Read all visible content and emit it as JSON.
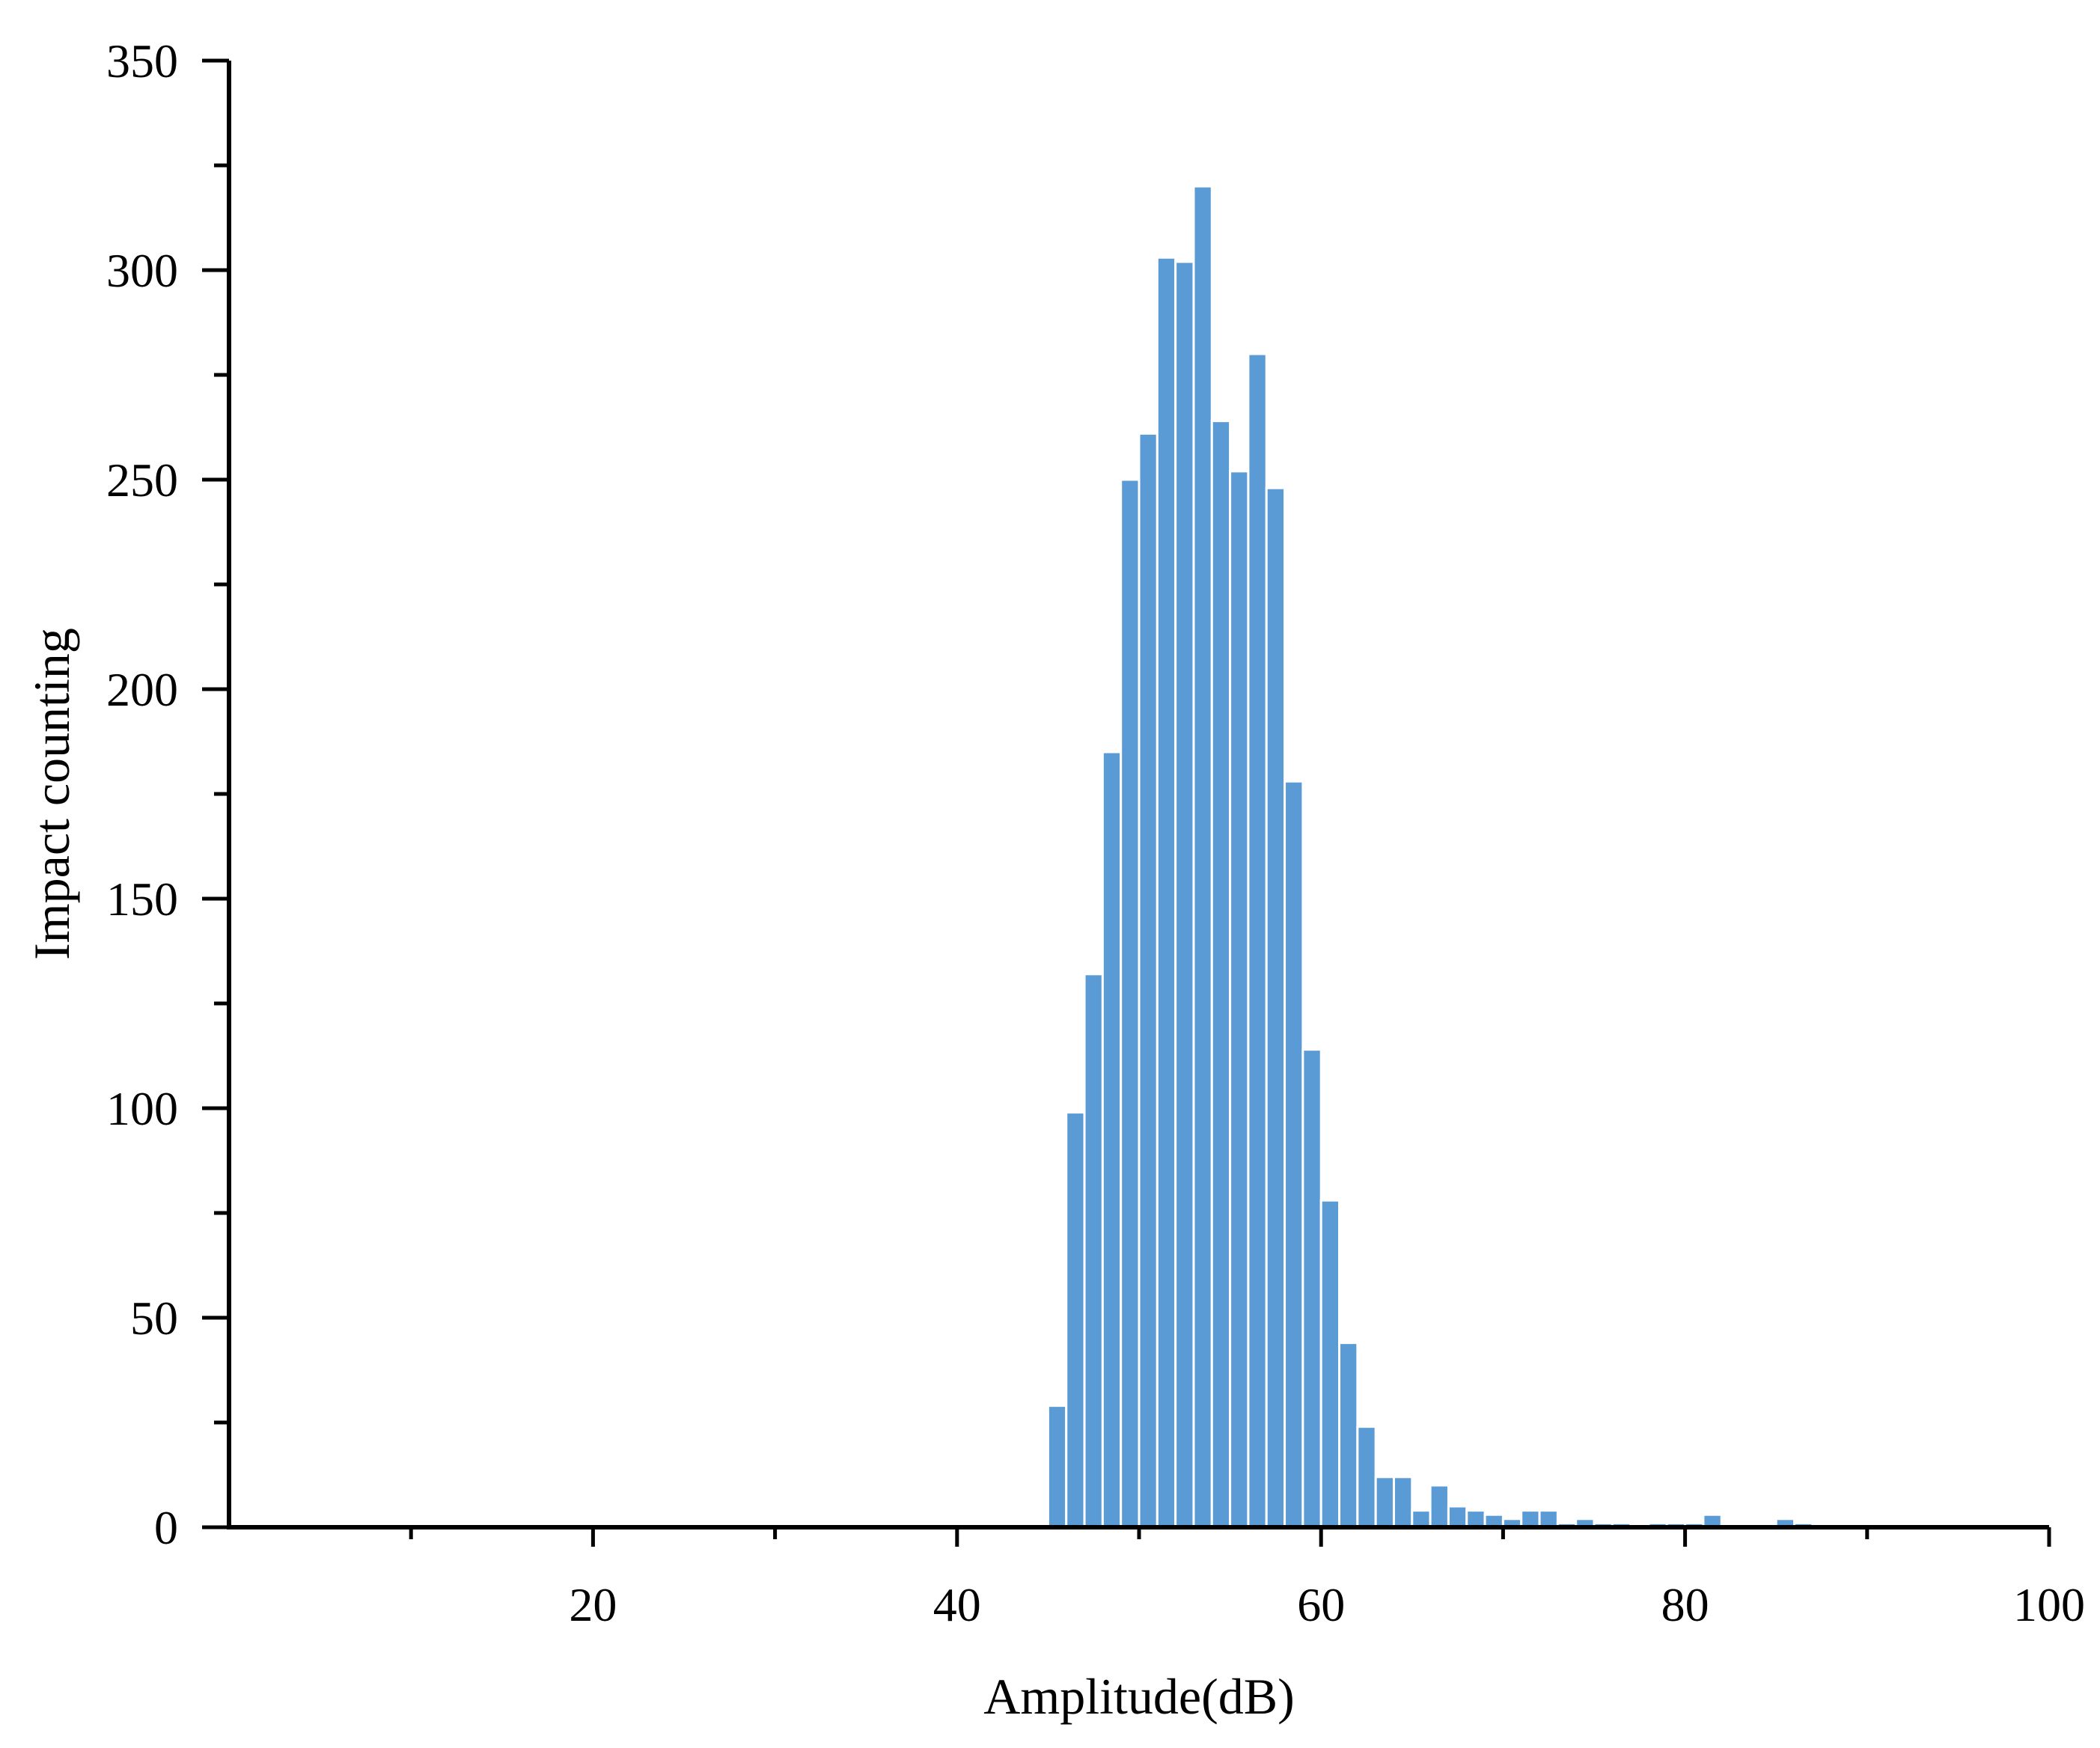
{
  "chart_data": {
    "type": "bar",
    "title": "",
    "xlabel": "Amplitude(dB)",
    "ylabel": "Impact counting",
    "xlim": [
      0,
      100
    ],
    "ylim": [
      0,
      350
    ],
    "x_ticks": [
      20,
      40,
      60,
      80,
      100
    ],
    "y_ticks": [
      0,
      50,
      100,
      150,
      200,
      250,
      300,
      350
    ],
    "grid": false,
    "legend": "none",
    "bin_width": 1,
    "bar_color": "#5b9bd5",
    "bar_edge_color": "#ffffff",
    "bars": [
      {
        "x": 45,
        "y": 29
      },
      {
        "x": 46,
        "y": 99
      },
      {
        "x": 47,
        "y": 132
      },
      {
        "x": 48,
        "y": 185
      },
      {
        "x": 49,
        "y": 250
      },
      {
        "x": 50,
        "y": 261
      },
      {
        "x": 51,
        "y": 303
      },
      {
        "x": 52,
        "y": 302
      },
      {
        "x": 53,
        "y": 320
      },
      {
        "x": 54,
        "y": 264
      },
      {
        "x": 55,
        "y": 252
      },
      {
        "x": 56,
        "y": 280
      },
      {
        "x": 57,
        "y": 248
      },
      {
        "x": 58,
        "y": 178
      },
      {
        "x": 59,
        "y": 114
      },
      {
        "x": 60,
        "y": 78
      },
      {
        "x": 61,
        "y": 44
      },
      {
        "x": 62,
        "y": 24
      },
      {
        "x": 63,
        "y": 12
      },
      {
        "x": 64,
        "y": 12
      },
      {
        "x": 65,
        "y": 4
      },
      {
        "x": 66,
        "y": 10
      },
      {
        "x": 67,
        "y": 5
      },
      {
        "x": 68,
        "y": 4
      },
      {
        "x": 69,
        "y": 3
      },
      {
        "x": 70,
        "y": 2
      },
      {
        "x": 71,
        "y": 4
      },
      {
        "x": 72,
        "y": 4
      },
      {
        "x": 73,
        "y": 1
      },
      {
        "x": 74,
        "y": 2
      },
      {
        "x": 75,
        "y": 1
      },
      {
        "x": 76,
        "y": 1
      },
      {
        "x": 78,
        "y": 1
      },
      {
        "x": 79,
        "y": 1
      },
      {
        "x": 80,
        "y": 1
      },
      {
        "x": 81,
        "y": 3
      },
      {
        "x": 85,
        "y": 2
      },
      {
        "x": 86,
        "y": 1
      }
    ]
  }
}
